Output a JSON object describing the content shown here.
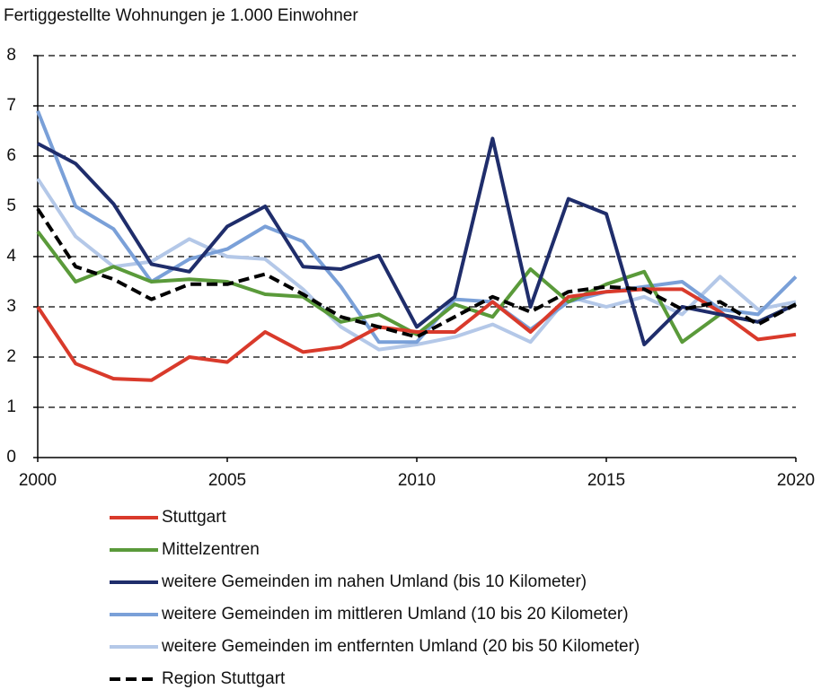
{
  "chart_data": {
    "type": "line",
    "title": "Fertiggestellte Wohnungen je 1.000 Einwohner",
    "x": [
      2000,
      2001,
      2002,
      2003,
      2004,
      2005,
      2006,
      2007,
      2008,
      2009,
      2010,
      2011,
      2012,
      2013,
      2014,
      2015,
      2016,
      2017,
      2018,
      2019,
      2020
    ],
    "xlim": [
      2000,
      2020
    ],
    "xticks": [
      2000,
      2005,
      2010,
      2015,
      2020
    ],
    "ylim": [
      0,
      8
    ],
    "yticks": [
      0,
      1,
      2,
      3,
      4,
      5,
      6,
      7,
      8
    ],
    "grid": true,
    "series": [
      {
        "name": "Stuttgart",
        "color": "#d93a2b",
        "values": [
          3.0,
          1.87,
          1.57,
          1.54,
          2.0,
          1.9,
          2.5,
          2.1,
          2.2,
          2.6,
          2.5,
          2.5,
          3.1,
          2.5,
          3.2,
          3.3,
          3.35,
          3.35,
          2.9,
          2.35,
          2.45
        ]
      },
      {
        "name": "Mittelzentren",
        "color": "#5a9a3a",
        "values": [
          4.5,
          3.5,
          3.8,
          3.5,
          3.55,
          3.5,
          3.25,
          3.2,
          2.7,
          2.85,
          2.45,
          3.05,
          2.8,
          3.75,
          3.1,
          3.45,
          3.7,
          2.3,
          2.85,
          2.7,
          3.05
        ]
      },
      {
        "name": "weitere Gemeinden im nahen Umland (bis 10 Kilometer)",
        "color": "#1f2d6b",
        "values": [
          6.25,
          5.85,
          5.05,
          3.85,
          3.7,
          4.6,
          5.0,
          3.8,
          3.75,
          4.02,
          2.6,
          3.2,
          6.35,
          3.0,
          5.15,
          4.85,
          2.25,
          3.0,
          2.85,
          2.7,
          3.05
        ]
      },
      {
        "name": "weitere Gemeinden im mittleren Umland (10 bis 20 Kilometer)",
        "color": "#7aa0d8",
        "values": [
          6.9,
          5.0,
          4.55,
          3.5,
          3.95,
          4.15,
          4.6,
          4.3,
          3.4,
          2.3,
          2.3,
          3.15,
          3.1,
          2.55,
          3.1,
          3.3,
          3.4,
          3.5,
          2.95,
          2.85,
          3.6
        ]
      },
      {
        "name": "weitere Gemeinden im entfernten Umland (20 bis 50 Kilometer)",
        "color": "#b4c8e8",
        "values": [
          5.55,
          4.4,
          3.8,
          3.9,
          4.35,
          4.0,
          3.95,
          3.35,
          2.6,
          2.15,
          2.25,
          2.4,
          2.65,
          2.3,
          3.2,
          3.0,
          3.2,
          2.85,
          3.6,
          2.95,
          3.1
        ]
      },
      {
        "name": "Region Stuttgart",
        "color": "#000000",
        "dashed": true,
        "values": [
          4.95,
          3.8,
          3.55,
          3.15,
          3.45,
          3.45,
          3.65,
          3.25,
          2.8,
          2.6,
          2.4,
          2.8,
          3.2,
          2.9,
          3.3,
          3.4,
          3.35,
          2.95,
          3.1,
          2.65,
          3.05
        ]
      }
    ]
  }
}
